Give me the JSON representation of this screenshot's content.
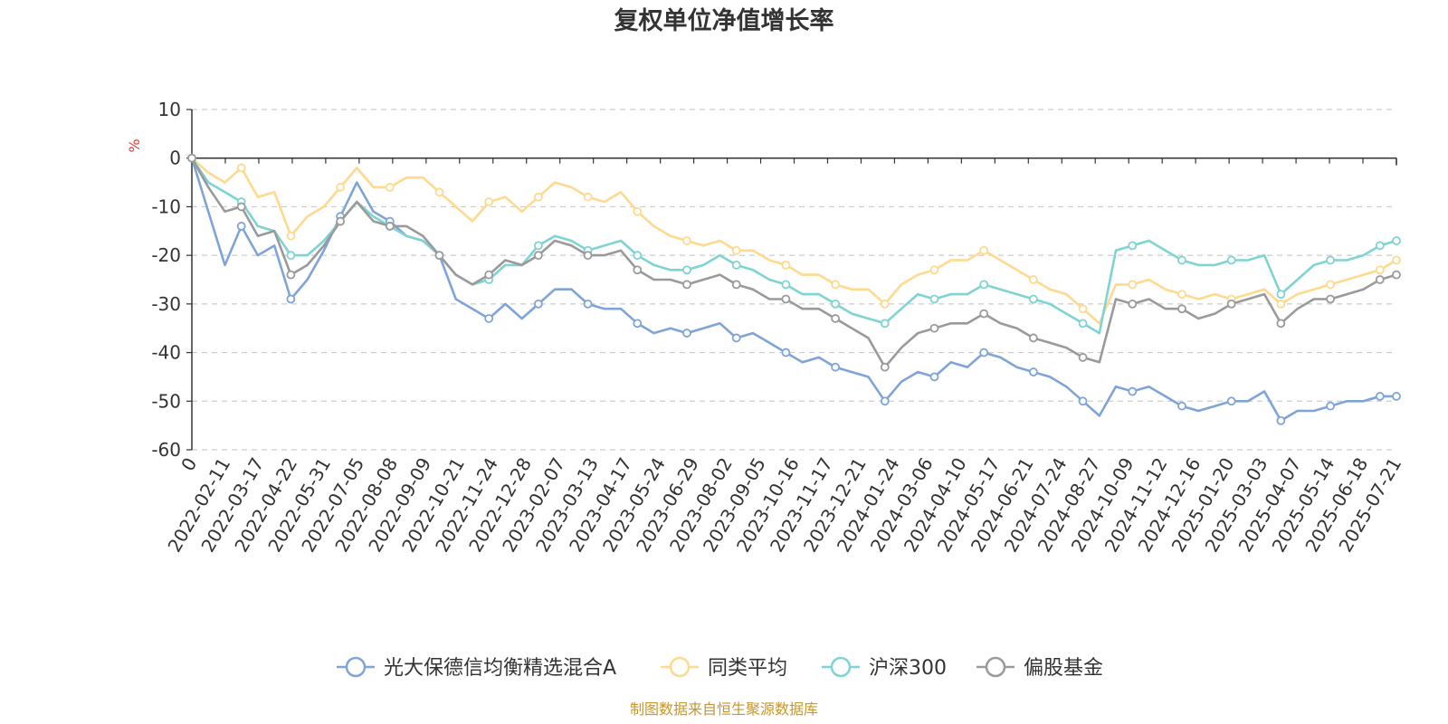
{
  "page": {
    "title": "复权单位净值增长率",
    "source": "制图数据来自恒生聚源数据库"
  },
  "chart_data": {
    "type": "line",
    "title": "复权单位净值增长率",
    "ylabel": "%",
    "xlabel": "",
    "ylim": [
      -60,
      10
    ],
    "yticks": [
      10,
      0,
      -10,
      -20,
      -30,
      -40,
      -50,
      -60
    ],
    "grid": true,
    "legend_position": "bottom",
    "x_tick_labels": [
      "0",
      "2022-02-11",
      "2022-03-17",
      "2022-04-22",
      "2022-05-31",
      "2022-07-05",
      "2022-08-08",
      "2022-09-09",
      "2022-10-21",
      "2022-11-24",
      "2022-12-28",
      "2023-02-07",
      "2023-03-13",
      "2023-04-17",
      "2023-05-24",
      "2023-06-29",
      "2023-08-02",
      "2023-09-05",
      "2023-10-16",
      "2023-11-17",
      "2023-12-21",
      "2024-01-24",
      "2024-03-06",
      "2024-04-10",
      "2024-05-17",
      "2024-06-21",
      "2024-07-24",
      "2024-08-27",
      "2024-10-09",
      "2024-11-12",
      "2024-12-16",
      "2025-01-20",
      "2025-03-03",
      "2025-04-07",
      "2025-05-14",
      "2025-06-18",
      "2025-07-21"
    ],
    "x": [
      "2022-01-04",
      "2022-01-20",
      "2022-02-11",
      "2022-02-28",
      "2022-03-17",
      "2022-04-06",
      "2022-04-22",
      "2022-05-16",
      "2022-05-31",
      "2022-06-17",
      "2022-07-05",
      "2022-07-21",
      "2022-08-08",
      "2022-08-24",
      "2022-09-09",
      "2022-09-29",
      "2022-10-21",
      "2022-11-08",
      "2022-11-24",
      "2022-12-12",
      "2022-12-28",
      "2023-01-16",
      "2023-02-07",
      "2023-02-23",
      "2023-03-13",
      "2023-03-29",
      "2023-04-17",
      "2023-05-05",
      "2023-05-24",
      "2023-06-12",
      "2023-06-29",
      "2023-07-17",
      "2023-08-02",
      "2023-08-18",
      "2023-09-05",
      "2023-09-21",
      "2023-10-16",
      "2023-11-01",
      "2023-11-17",
      "2023-12-05",
      "2023-12-21",
      "2024-01-08",
      "2024-01-24",
      "2024-02-06",
      "2024-03-06",
      "2024-03-22",
      "2024-04-10",
      "2024-04-26",
      "2024-05-17",
      "2024-06-04",
      "2024-06-21",
      "2024-07-09",
      "2024-07-24",
      "2024-08-09",
      "2024-08-27",
      "2024-09-19",
      "2024-10-09",
      "2024-10-25",
      "2024-11-12",
      "2024-11-28",
      "2024-12-16",
      "2025-01-02",
      "2025-01-20",
      "2025-02-12",
      "2025-03-03",
      "2025-03-19",
      "2025-04-07",
      "2025-04-25",
      "2025-05-14",
      "2025-05-30",
      "2025-06-18",
      "2025-07-04",
      "2025-07-21",
      "2025-08-06"
    ],
    "series": [
      {
        "name": "光大保德信均衡精选混合A",
        "color": "#7fa4d8",
        "values": [
          0,
          -11,
          -22,
          -14,
          -20,
          -18,
          -29,
          -25,
          -19,
          -12,
          -5,
          -11,
          -13,
          -16,
          -17,
          -20,
          -29,
          -31,
          -33,
          -30,
          -33,
          -30,
          -27,
          -27,
          -30,
          -31,
          -31,
          -34,
          -36,
          -35,
          -36,
          -35,
          -34,
          -37,
          -36,
          -38,
          -40,
          -42,
          -41,
          -43,
          -44,
          -45,
          -50,
          -46,
          -44,
          -45,
          -42,
          -43,
          -40,
          -41,
          -43,
          -44,
          -45,
          -47,
          -50,
          -53,
          -47,
          -48,
          -47,
          -49,
          -51,
          -52,
          -51,
          -50,
          -50,
          -48,
          -54,
          -52,
          -52,
          -51,
          -50,
          -50,
          -49,
          -49
        ]
      },
      {
        "name": "同类平均",
        "color": "#ffd98e",
        "values": [
          0,
          -3,
          -5,
          -2,
          -8,
          -7,
          -16,
          -12,
          -10,
          -6,
          -2,
          -6,
          -6,
          -4,
          -4,
          -7,
          -10,
          -13,
          -9,
          -8,
          -11,
          -8,
          -5,
          -6,
          -8,
          -9,
          -7,
          -11,
          -14,
          -16,
          -17,
          -18,
          -17,
          -19,
          -19,
          -21,
          -22,
          -24,
          -24,
          -26,
          -27,
          -27,
          -30,
          -26,
          -24,
          -23,
          -21,
          -21,
          -19,
          -21,
          -23,
          -25,
          -27,
          -28,
          -31,
          -34,
          -26,
          -26,
          -25,
          -27,
          -28,
          -29,
          -28,
          -29,
          -28,
          -27,
          -30,
          -28,
          -27,
          -26,
          -25,
          -24,
          -23,
          -21
        ]
      },
      {
        "name": "沪深300",
        "color": "#7ed3d3",
        "values": [
          0,
          -5,
          -7,
          -9,
          -14,
          -15,
          -20,
          -20,
          -17,
          -13,
          -9,
          -12,
          -14,
          -16,
          -17,
          -20,
          -24,
          -26,
          -25,
          -22,
          -22,
          -18,
          -16,
          -17,
          -19,
          -18,
          -17,
          -20,
          -22,
          -23,
          -23,
          -22,
          -20,
          -22,
          -23,
          -25,
          -26,
          -28,
          -28,
          -30,
          -32,
          -33,
          -34,
          -31,
          -28,
          -29,
          -28,
          -28,
          -26,
          -27,
          -28,
          -29,
          -30,
          -32,
          -34,
          -36,
          -19,
          -18,
          -17,
          -19,
          -21,
          -22,
          -22,
          -21,
          -21,
          -20,
          -28,
          -25,
          -22,
          -21,
          -21,
          -20,
          -18,
          -17
        ]
      },
      {
        "name": "偏股基金",
        "color": "#9a9a9a",
        "values": [
          0,
          -6,
          -11,
          -10,
          -16,
          -15,
          -24,
          -22,
          -18,
          -13,
          -9,
          -13,
          -14,
          -14,
          -16,
          -20,
          -24,
          -26,
          -24,
          -21,
          -22,
          -20,
          -17,
          -18,
          -20,
          -20,
          -19,
          -23,
          -25,
          -25,
          -26,
          -25,
          -24,
          -26,
          -27,
          -29,
          -29,
          -31,
          -31,
          -33,
          -35,
          -37,
          -43,
          -39,
          -36,
          -35,
          -34,
          -34,
          -32,
          -34,
          -35,
          -37,
          -38,
          -39,
          -41,
          -42,
          -29,
          -30,
          -29,
          -31,
          -31,
          -33,
          -32,
          -30,
          -29,
          -28,
          -34,
          -31,
          -29,
          -29,
          -28,
          -27,
          -25,
          -24
        ]
      }
    ]
  }
}
